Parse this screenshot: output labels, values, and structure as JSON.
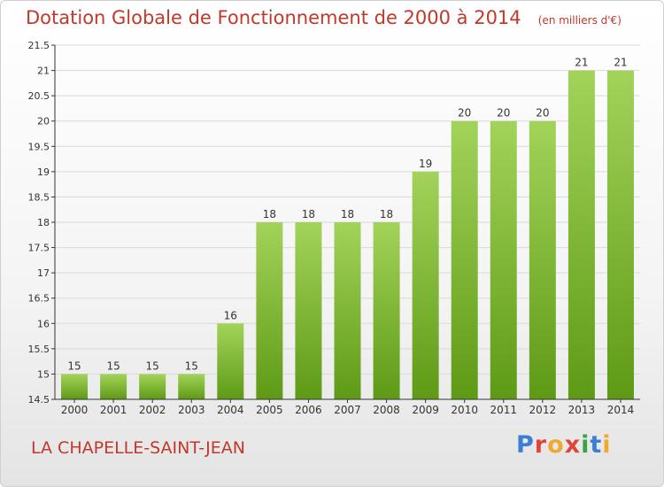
{
  "header": {
    "title": "Dotation Globale de Fonctionnement de 2000 à 2014",
    "unit": "(en milliers d'€)"
  },
  "footer": {
    "commune": "LA CHAPELLE-SAINT-JEAN"
  },
  "brand": {
    "letters": [
      "P",
      "r",
      "o",
      "x",
      "i",
      "t",
      "i"
    ],
    "colors": [
      "#3a7fd5",
      "#e2433b",
      "#f0a830",
      "#e2433b",
      "#3aa34a",
      "#3a7fd5",
      "#f0a830"
    ]
  },
  "colors": {
    "bar_light": "#a3d35a",
    "bar_dark": "#5e9a16",
    "axis": "#333333",
    "grid": "#d9d9d9",
    "accent": "#c0392b"
  },
  "chart_data": {
    "type": "bar",
    "categories": [
      "2000",
      "2001",
      "2002",
      "2003",
      "2004",
      "2005",
      "2006",
      "2007",
      "2008",
      "2009",
      "2010",
      "2011",
      "2012",
      "2013",
      "2014"
    ],
    "values": [
      15,
      15,
      15,
      15,
      16,
      18,
      18,
      18,
      18,
      19,
      20,
      20,
      20,
      21,
      21
    ],
    "value_labels": [
      "15",
      "15",
      "15",
      "15",
      "16",
      "18",
      "18",
      "18",
      "18",
      "19",
      "20",
      "20",
      "20",
      "21",
      "21"
    ],
    "ylim": [
      14.5,
      21.5
    ],
    "yticks": [
      14.5,
      15,
      15.5,
      16,
      16.5,
      17,
      17.5,
      18,
      18.5,
      19,
      19.5,
      20,
      20.5,
      21,
      21.5
    ],
    "title": "Dotation Globale de Fonctionnement de 2000 à 2014",
    "xlabel": "",
    "ylabel": "",
    "grid": "horizontal",
    "legend": "none"
  }
}
